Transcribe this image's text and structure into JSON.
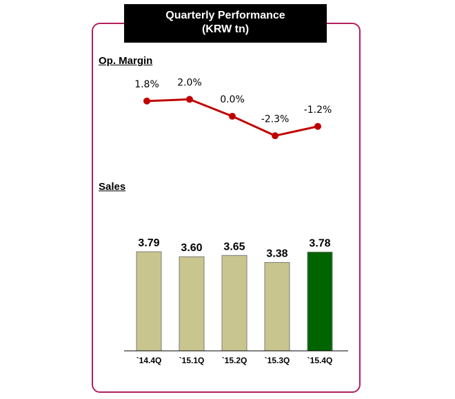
{
  "header": {
    "title": "Quarterly Performance",
    "subtitle": "(KRW tn)"
  },
  "labels": {
    "margin_section": "Op. Margin",
    "sales_section": "Sales"
  },
  "colors": {
    "frame": "#b01e5e",
    "line": "#c00000",
    "bar": "#c9c58e",
    "bar_highlight": "#006400"
  },
  "chart_data": [
    {
      "type": "line",
      "categories": [
        "`14.4Q",
        "`15.1Q",
        "`15.2Q",
        "`15.3Q",
        "`15.4Q"
      ],
      "values": [
        1.8,
        2.0,
        0.0,
        -2.3,
        -1.2
      ],
      "data_labels": [
        "1.8%",
        "2.0%",
        "0.0%",
        "-2.3%",
        "-1.2%"
      ],
      "title": "Op. Margin",
      "grid": false
    },
    {
      "type": "bar",
      "categories": [
        "`14.4Q",
        "`15.1Q",
        "`15.2Q",
        "`15.3Q",
        "`15.4Q"
      ],
      "values": [
        3.79,
        3.6,
        3.65,
        3.38,
        3.78
      ],
      "data_labels": [
        "3.79",
        "3.60",
        "3.65",
        "3.38",
        "3.78"
      ],
      "highlight_index": 4,
      "title": "Sales",
      "grid": false
    }
  ]
}
